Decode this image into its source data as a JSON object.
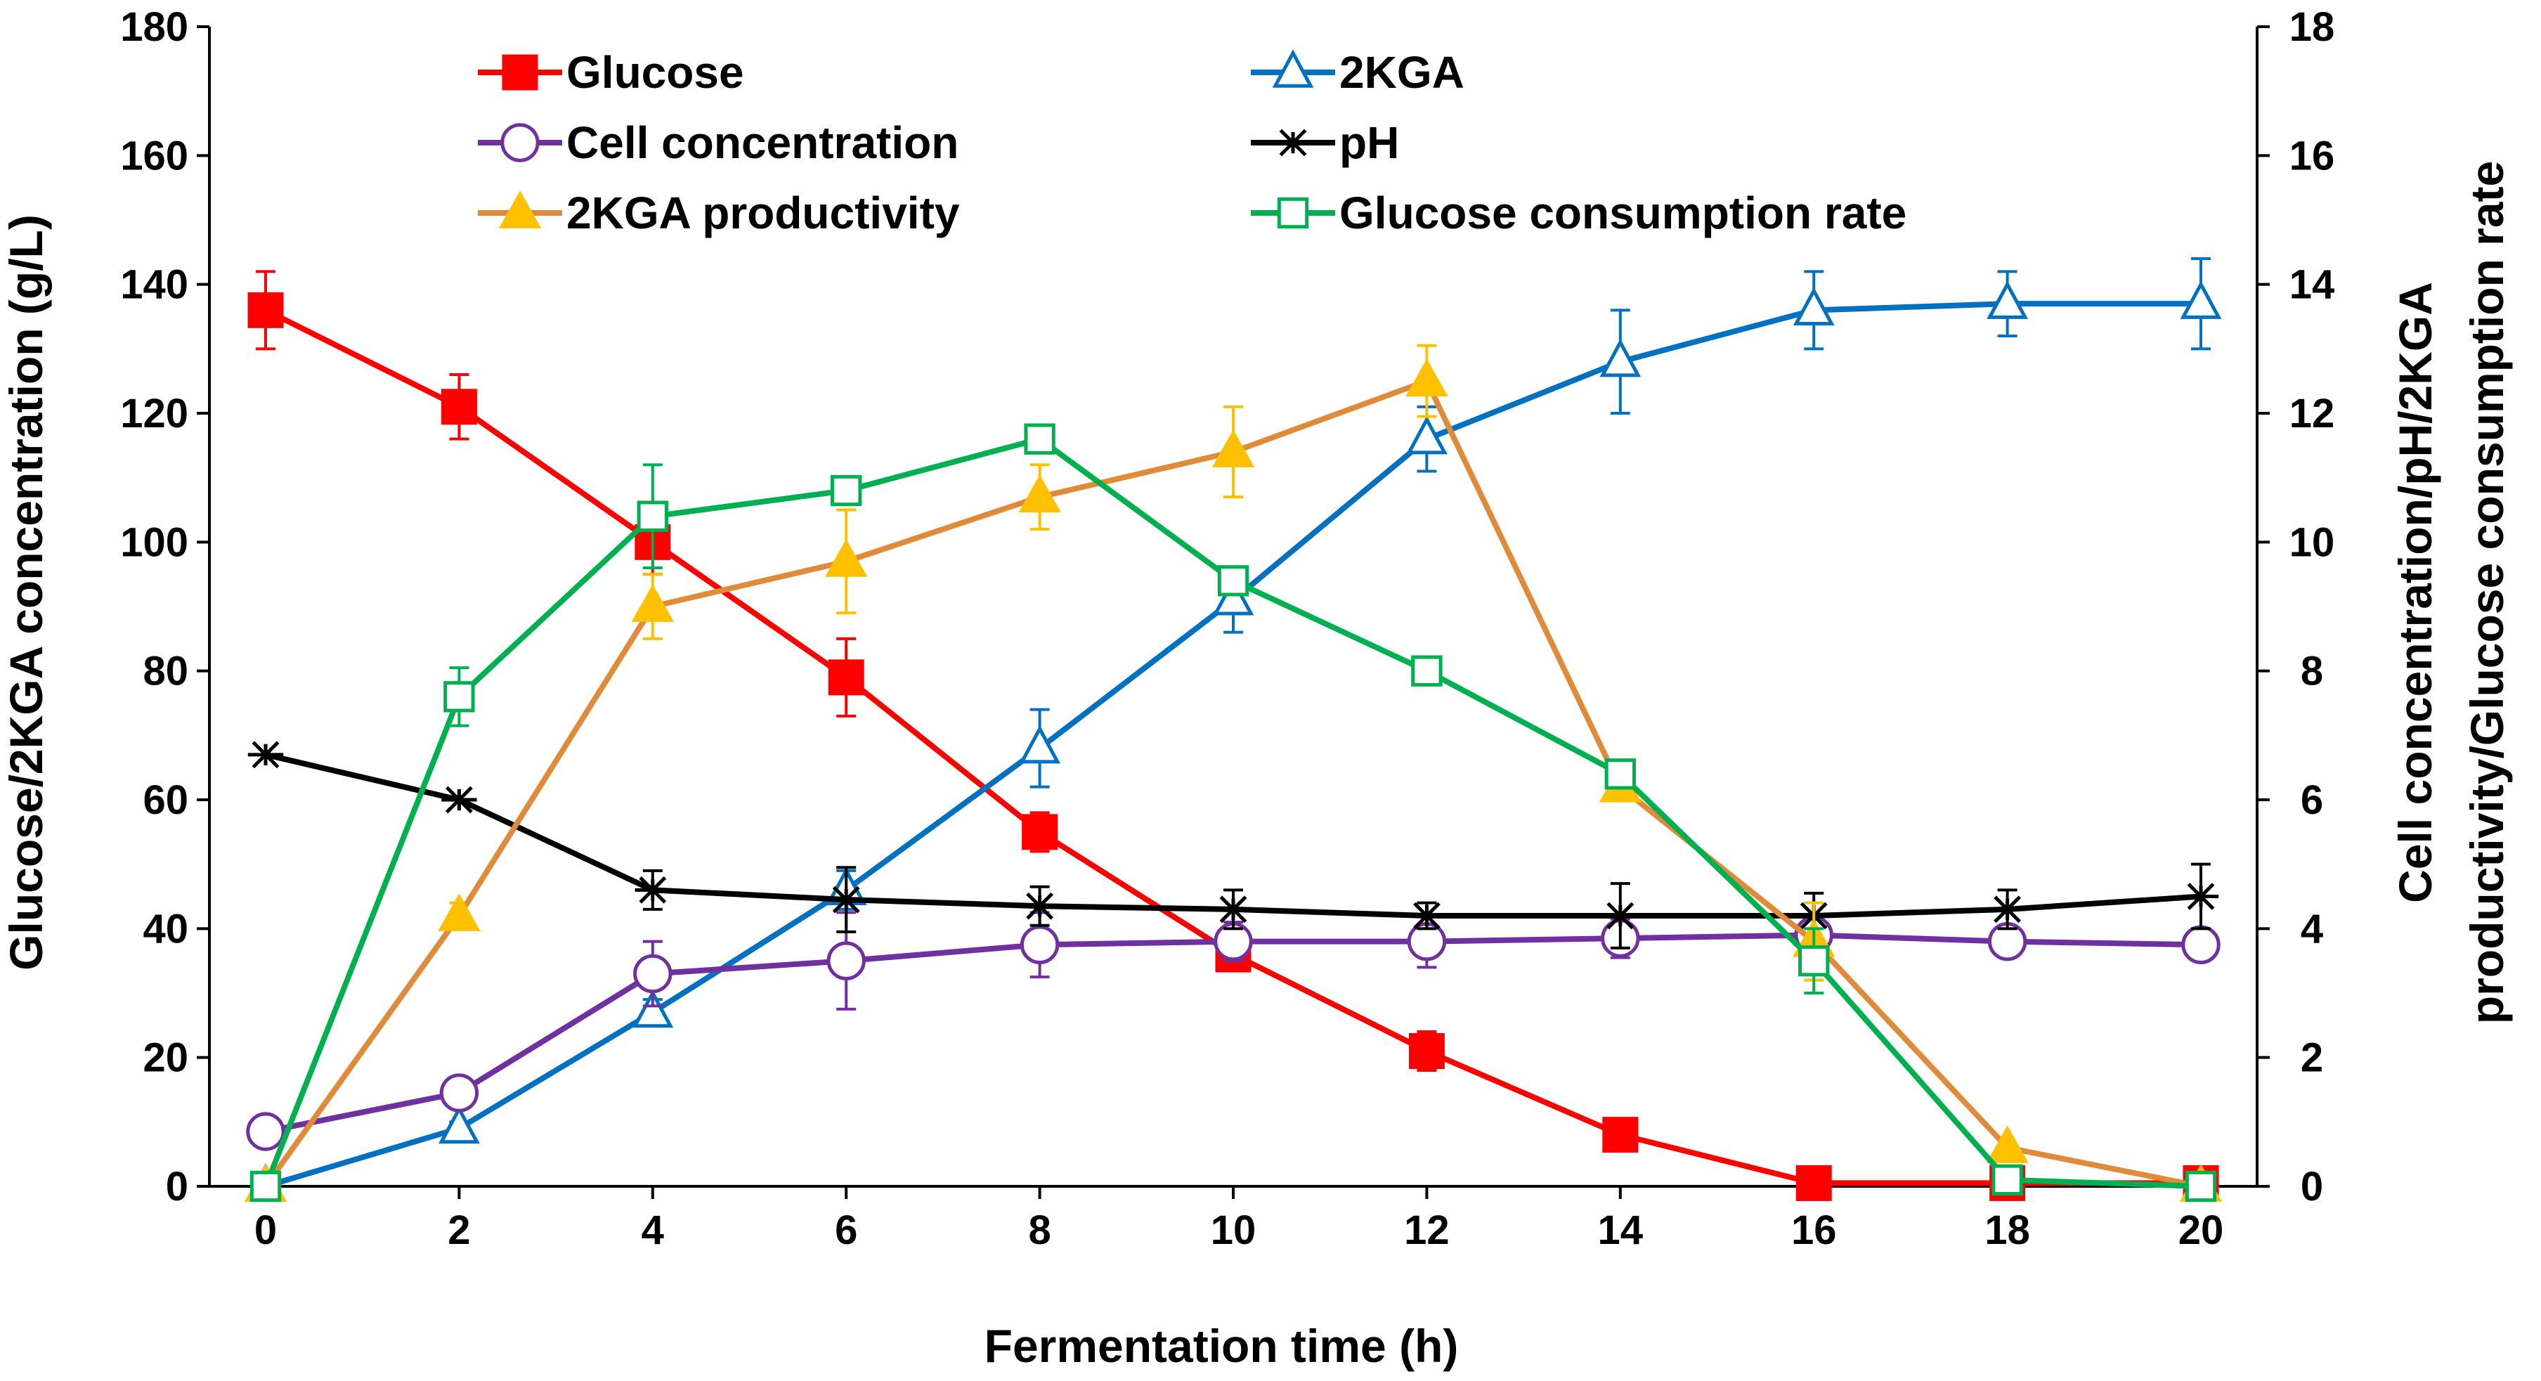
{
  "chart_data": {
    "type": "line",
    "title": "",
    "xlabel": "Fermentation time (h)",
    "ylabel_left": "Glucose/2KGA concentration (g/L)",
    "ylabel_right_lines": [
      "Cell concentration/pH/2KGA",
      "productivity/Glucose  consumption  rate"
    ],
    "x": [
      0,
      2,
      4,
      6,
      8,
      10,
      12,
      14,
      16,
      18,
      20
    ],
    "x_ticks": [
      "0",
      "2",
      "4",
      "6",
      "8",
      "10",
      "12",
      "14",
      "16",
      "18",
      "20"
    ],
    "xlim": [
      0,
      20
    ],
    "ylim_left": [
      0,
      180
    ],
    "ylim_right": [
      0,
      18
    ],
    "y_ticks_left": [
      "0",
      "20",
      "40",
      "60",
      "80",
      "100",
      "120",
      "140",
      "160",
      "180"
    ],
    "y_ticks_right": [
      "0",
      "2",
      "4",
      "6",
      "8",
      "10",
      "12",
      "14",
      "16",
      "18"
    ],
    "grid": false,
    "legend_position": "top",
    "series": [
      {
        "name": "Glucose",
        "axis": "left",
        "color": "#ff0000",
        "marker": "filled-square",
        "values": [
          136,
          121,
          100,
          79,
          55,
          36,
          21,
          8,
          0.5,
          0.5,
          0.5
        ],
        "errors": [
          6,
          5,
          5,
          6,
          3,
          2,
          3,
          0,
          0,
          0,
          0
        ]
      },
      {
        "name": "2KGA",
        "axis": "left",
        "color": "#0070c0",
        "marker": "open-triangle",
        "values": [
          0,
          9,
          27,
          46,
          68,
          91,
          116,
          128,
          136,
          137,
          137
        ],
        "errors": [
          0,
          1,
          2,
          3,
          6,
          5,
          5,
          8,
          6,
          5,
          7
        ]
      },
      {
        "name": "Cell concentration",
        "axis": "right",
        "color": "#7030a0",
        "marker": "open-circle",
        "values": [
          0.85,
          1.45,
          3.3,
          3.5,
          3.75,
          3.8,
          3.8,
          3.85,
          3.9,
          3.8,
          3.75
        ],
        "errors": [
          0,
          0.15,
          0.5,
          0.75,
          0.5,
          0.3,
          0.4,
          0.3,
          0.2,
          0.2,
          0.2
        ]
      },
      {
        "name": "pH",
        "axis": "right",
        "color": "#000000",
        "marker": "star",
        "values": [
          6.7,
          6.0,
          4.6,
          4.45,
          4.35,
          4.3,
          4.2,
          4.2,
          4.2,
          4.3,
          4.5
        ],
        "errors": [
          0,
          0,
          0.3,
          0.5,
          0.3,
          0.3,
          0.2,
          0.5,
          0.35,
          0.3,
          0.5
        ]
      },
      {
        "name": "2KGA productivity",
        "axis": "right",
        "color": "#e08b3a",
        "marker": "filled-triangle",
        "values": [
          0,
          4.2,
          9.0,
          9.7,
          10.7,
          11.4,
          12.5,
          6.2,
          3.8,
          0.6,
          0
        ],
        "errors": [
          0,
          0.2,
          0.5,
          0.8,
          0.5,
          0.7,
          0.55,
          0.2,
          0.6,
          0,
          0
        ]
      },
      {
        "name": "Glucose consumption rate",
        "axis": "right",
        "color": "#00b050",
        "marker": "open-square",
        "values": [
          0,
          7.6,
          10.4,
          10.8,
          11.6,
          9.4,
          8.0,
          6.4,
          3.5,
          0.1,
          0
        ],
        "errors": [
          0,
          0.45,
          0.8,
          0.2,
          0.2,
          0.1,
          0.1,
          0.1,
          0.5,
          0,
          0
        ]
      }
    ]
  }
}
